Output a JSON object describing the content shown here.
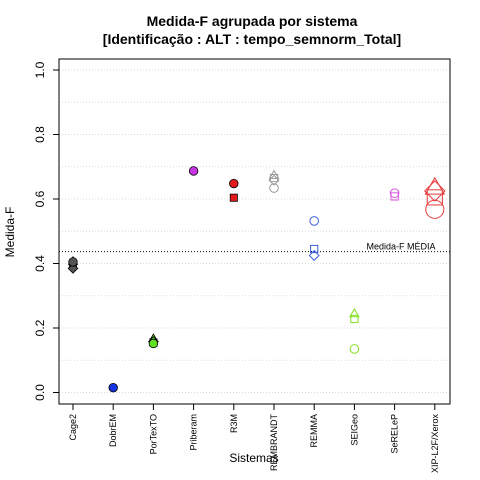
{
  "chart_data": {
    "type": "scatter",
    "title_line1": "Medida-F agrupada por sistema",
    "title_line2": "[Identificação : ALT : tempo_semnorm_Total]",
    "xlabel": "Sistemas",
    "ylabel": "Medida-F",
    "ylim": [
      0.0,
      1.0
    ],
    "y_ticks": [
      "0.0",
      "0.2",
      "0.4",
      "0.6",
      "0.8",
      "1.0"
    ],
    "y_tick_values": [
      0.0,
      0.2,
      0.4,
      0.6,
      0.8,
      1.0
    ],
    "grid": "horizontal dotted",
    "categories": [
      "Cage2",
      "DobrEM",
      "PorTexTO",
      "Priberam",
      "R3M",
      "REMBRANDT",
      "REMMA",
      "SEIGeo",
      "SeRELeP",
      "XIP-L2F/Xerox"
    ],
    "reference_line": {
      "label": "Medida-F MÉDIA",
      "value": 0.437
    },
    "points": [
      {
        "category": "Cage2",
        "shape": "circle",
        "filled": true,
        "size": 1,
        "color": "#555555",
        "value": 0.405
      },
      {
        "category": "Cage2",
        "shape": "square",
        "filled": true,
        "size": 1,
        "color": "#555555",
        "value": 0.398
      },
      {
        "category": "Cage2",
        "shape": "triangle",
        "filled": true,
        "size": 1,
        "color": "#555555",
        "value": 0.405
      },
      {
        "category": "Cage2",
        "shape": "diamond",
        "filled": true,
        "size": 1,
        "color": "#555555",
        "value": 0.385
      },
      {
        "category": "DobrEM",
        "shape": "circle",
        "filled": true,
        "size": 1,
        "color": "#1533e0",
        "value": 0.015
      },
      {
        "category": "PorTexTO",
        "shape": "circle",
        "filled": true,
        "size": 1,
        "color": "#5fe020",
        "value": 0.152
      },
      {
        "category": "PorTexTO",
        "shape": "square",
        "filled": true,
        "size": 1,
        "color": "#5fe020",
        "value": 0.155
      },
      {
        "category": "PorTexTO",
        "shape": "triangle",
        "filled": true,
        "size": 1,
        "color": "#5fe020",
        "value": 0.165
      },
      {
        "category": "PorTexTO",
        "shape": "diamond",
        "filled": true,
        "size": 1,
        "color": "#5fe020",
        "value": 0.158
      },
      {
        "category": "Priberam",
        "shape": "circle",
        "filled": true,
        "size": 1,
        "color": "#c535e0",
        "value": 0.687
      },
      {
        "category": "R3M",
        "shape": "circle",
        "filled": true,
        "size": 1,
        "color": "#e01a1a",
        "value": 0.648
      },
      {
        "category": "R3M",
        "shape": "square",
        "filled": true,
        "size": 1,
        "color": "#e01a1a",
        "value": 0.604
      },
      {
        "category": "REMBRANDT",
        "shape": "circle",
        "filled": false,
        "size": 1,
        "color": "#999999",
        "value": 0.634
      },
      {
        "category": "REMBRANDT",
        "shape": "square",
        "filled": false,
        "size": 1,
        "color": "#999999",
        "value": 0.665
      },
      {
        "category": "REMBRANDT",
        "shape": "triangle",
        "filled": false,
        "size": 1,
        "color": "#999999",
        "value": 0.672
      },
      {
        "category": "REMBRANDT",
        "shape": "diamond",
        "filled": false,
        "size": 1,
        "color": "#999999",
        "value": 0.658
      },
      {
        "category": "REMMA",
        "shape": "circle",
        "filled": false,
        "size": 1,
        "color": "#3a5fe0",
        "value": 0.532
      },
      {
        "category": "REMMA",
        "shape": "square",
        "filled": false,
        "size": 1,
        "color": "#3a5fe0",
        "value": 0.445
      },
      {
        "category": "REMMA",
        "shape": "diamond",
        "filled": false,
        "size": 1,
        "color": "#3a5fe0",
        "value": 0.425
      },
      {
        "category": "SEIGeo",
        "shape": "circle",
        "filled": false,
        "size": 1,
        "color": "#7fe020",
        "value": 0.135
      },
      {
        "category": "SEIGeo",
        "shape": "square",
        "filled": false,
        "size": 1,
        "color": "#7fe020",
        "value": 0.228
      },
      {
        "category": "SEIGeo",
        "shape": "triangle",
        "filled": false,
        "size": 1,
        "color": "#7fe020",
        "value": 0.243
      },
      {
        "category": "SeRELeP",
        "shape": "circle",
        "filled": false,
        "size": 1,
        "color": "#d855e0",
        "value": 0.618
      },
      {
        "category": "SeRELeP",
        "shape": "square",
        "filled": false,
        "size": 1,
        "color": "#d855e0",
        "value": 0.608
      },
      {
        "category": "XIP-L2F/Xerox",
        "shape": "circle",
        "filled": false,
        "size": 2,
        "color": "#e83a3a",
        "value": 0.568
      },
      {
        "category": "XIP-L2F/Xerox",
        "shape": "square",
        "filled": false,
        "size": 2,
        "color": "#e83a3a",
        "value": 0.605
      },
      {
        "category": "XIP-L2F/Xerox",
        "shape": "triangle",
        "filled": false,
        "size": 2,
        "color": "#e83a3a",
        "value": 0.632
      },
      {
        "category": "XIP-L2F/Xerox",
        "shape": "diamond",
        "filled": false,
        "size": 2,
        "color": "#e83a3a",
        "value": 0.625
      }
    ]
  }
}
